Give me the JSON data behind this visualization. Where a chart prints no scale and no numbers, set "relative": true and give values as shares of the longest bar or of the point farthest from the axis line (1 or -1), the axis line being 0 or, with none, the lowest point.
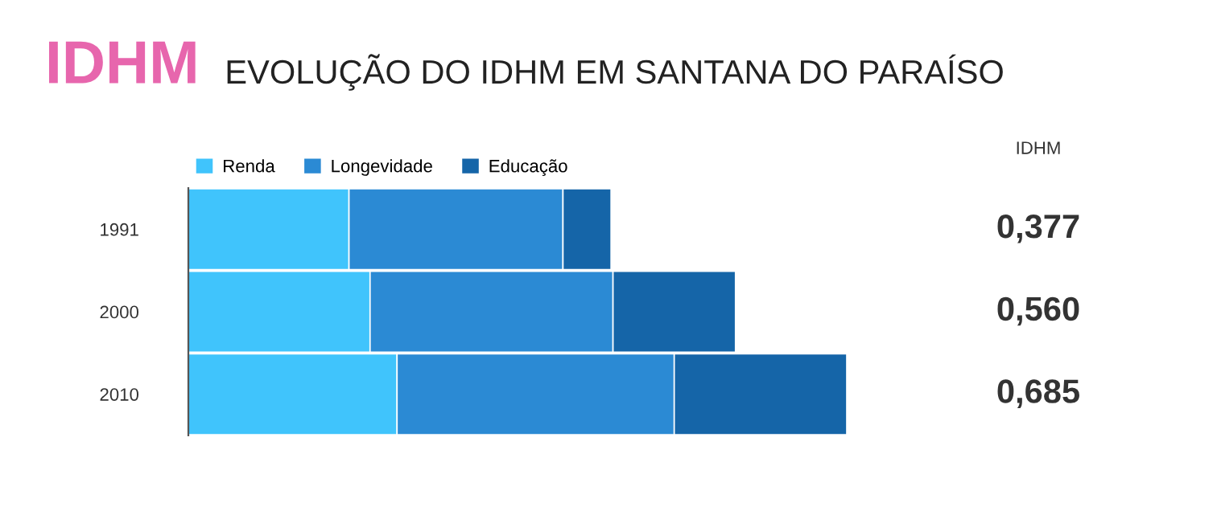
{
  "chart_data": {
    "type": "bar",
    "orientation": "horizontal",
    "stacked": true,
    "relative": true,
    "title": "EVOLUÇÃO DO IDHM EM SANTANA DO PARAÍSO",
    "categories": [
      "1991",
      "2000",
      "2010"
    ],
    "series": [
      {
        "name": "Renda",
        "color": "#40c4fc",
        "values": [
          0.244,
          0.276,
          0.317
        ]
      },
      {
        "name": "Longevidade",
        "color": "#2b8ad4",
        "values": [
          0.325,
          0.369,
          0.421
        ]
      },
      {
        "name": "Educação",
        "color": "#1565a8",
        "values": [
          0.073,
          0.186,
          0.262
        ]
      }
    ],
    "annotations": [
      "IDHM",
      "IDHM",
      "0,377",
      "0,560",
      "0,685"
    ],
    "legend": "top left",
    "grid": false
  }
}
